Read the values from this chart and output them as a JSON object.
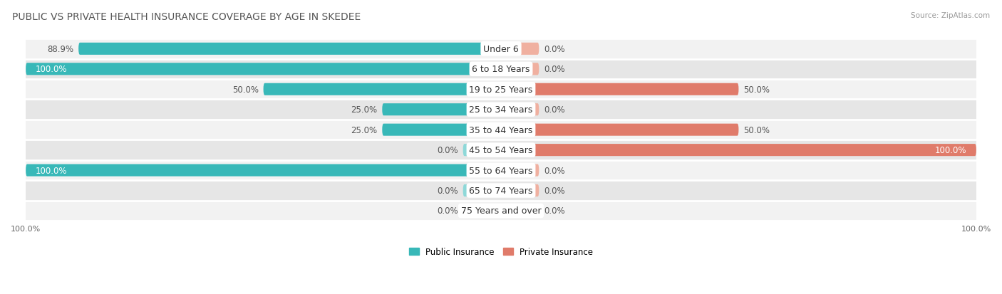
{
  "title": "PUBLIC VS PRIVATE HEALTH INSURANCE COVERAGE BY AGE IN SKEDEE",
  "source": "Source: ZipAtlas.com",
  "categories": [
    "Under 6",
    "6 to 18 Years",
    "19 to 25 Years",
    "25 to 34 Years",
    "35 to 44 Years",
    "45 to 54 Years",
    "55 to 64 Years",
    "65 to 74 Years",
    "75 Years and over"
  ],
  "public": [
    88.9,
    100.0,
    50.0,
    25.0,
    25.0,
    0.0,
    100.0,
    0.0,
    0.0
  ],
  "private": [
    0.0,
    0.0,
    50.0,
    0.0,
    50.0,
    100.0,
    0.0,
    0.0,
    0.0
  ],
  "public_color": "#38b8b8",
  "private_color": "#e07b6a",
  "public_color_light": "#8ed8d8",
  "private_color_light": "#f0b0a0",
  "title_fontsize": 10,
  "label_fontsize": 8.5,
  "cat_fontsize": 9,
  "tick_fontsize": 8,
  "source_fontsize": 7.5,
  "xlim": [
    -100,
    100
  ],
  "stub": 8,
  "figsize": [
    14.06,
    4.14
  ],
  "dpi": 100,
  "row_colors": [
    "#f2f2f2",
    "#e6e6e6"
  ]
}
